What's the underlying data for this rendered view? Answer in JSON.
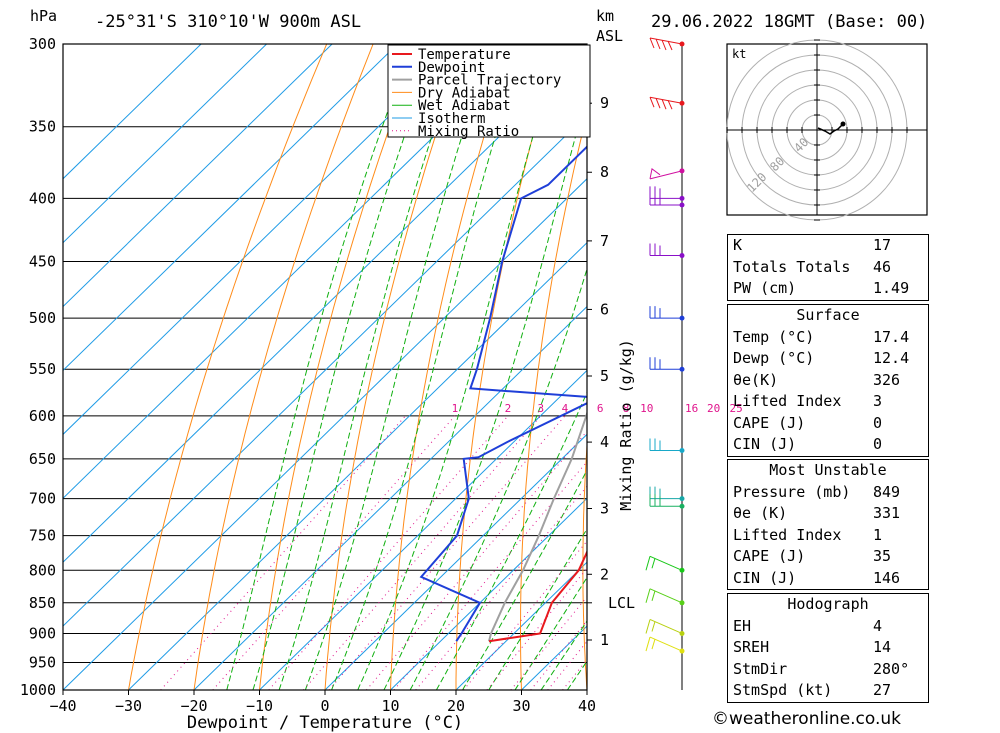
{
  "header": {
    "pressure_unit": "hPa",
    "location": "-25°31'S 310°10'W 900m ASL",
    "height_unit": "km",
    "height_unit_sub": "ASL",
    "datetime": "29.06.2022 18GMT (Base: 00)"
  },
  "credit": "©weatheronline.co.uk",
  "colors": {
    "temperature": "#e8191e",
    "dewpoint": "#1f3fd8",
    "parcel": "#a0a0a0",
    "dry_adiabat": "#ff8c1a",
    "wet_adiabat": "#10b010",
    "isotherm": "#1e9be6",
    "mixing_ratio": "#e0148c"
  },
  "chart_data": {
    "type": "line",
    "title": "-25°31'S 310°10'W 900m ASL",
    "xlabel": "Dewpoint / Temperature (°C)",
    "ylabel": "hPa",
    "xlim": [
      -40,
      40
    ],
    "ylim": [
      1000,
      300
    ],
    "x_ticks": [
      -40,
      -30,
      -20,
      -10,
      0,
      10,
      20,
      30,
      40
    ],
    "pressure_ticks": [
      300,
      350,
      400,
      450,
      500,
      550,
      600,
      650,
      700,
      750,
      800,
      850,
      900,
      950,
      1000
    ],
    "height_ticks": [
      {
        "label": "1",
        "p": 911
      },
      {
        "label": "2",
        "p": 806
      },
      {
        "label": "3",
        "p": 713
      },
      {
        "label": "4",
        "p": 630
      },
      {
        "label": "5",
        "p": 557
      },
      {
        "label": "6",
        "p": 492
      },
      {
        "label": "7",
        "p": 433
      },
      {
        "label": "8",
        "p": 381
      },
      {
        "label": "9",
        "p": 335
      },
      {
        "label": "LCL",
        "p": 850
      }
    ],
    "mixing_ratio_axis_label": "Mixing Ratio (g/kg)",
    "mixing_ratio_labels": [
      "1",
      "2",
      "3",
      "4",
      "6",
      "8",
      "10",
      "16",
      "20",
      "25"
    ],
    "grid": true,
    "legend": {
      "position": "top-right",
      "entries": [
        "Temperature",
        "Dewpoint",
        "Parcel Trajectory",
        "Dry Adiabat",
        "Wet Adiabat",
        "Isotherm",
        "Mixing Ratio"
      ]
    },
    "series": [
      {
        "name": "Temperature",
        "points": [
          [
            913,
            17.4
          ],
          [
            900,
            24
          ],
          [
            850,
            21
          ],
          [
            800,
            20
          ],
          [
            750,
            17
          ],
          [
            700,
            13
          ],
          [
            660,
            10
          ],
          [
            650,
            10
          ],
          [
            620,
            8
          ],
          [
            600,
            6
          ],
          [
            560,
            5
          ],
          [
            550,
            3
          ],
          [
            500,
            -3
          ],
          [
            450,
            -10
          ],
          [
            400,
            -18
          ],
          [
            350,
            -27
          ],
          [
            300,
            -36
          ]
        ]
      },
      {
        "name": "Dewpoint",
        "points": [
          [
            913,
            12.4
          ],
          [
            900,
            12
          ],
          [
            850,
            10
          ],
          [
            810,
            -3
          ],
          [
            750,
            -4
          ],
          [
            700,
            -8
          ],
          [
            650,
            -15
          ],
          [
            648,
            -13
          ],
          [
            630,
            -11
          ],
          [
            580,
            -4
          ],
          [
            570,
            -25
          ],
          [
            550,
            -27
          ],
          [
            500,
            -33
          ],
          [
            450,
            -40
          ],
          [
            400,
            -47
          ],
          [
            390,
            -45
          ],
          [
            360,
            -45
          ],
          [
            350,
            -43
          ],
          [
            320,
            -39
          ],
          [
            300,
            -41
          ]
        ]
      },
      {
        "name": "Parcel Trajectory",
        "points": [
          [
            913,
            17.4
          ],
          [
            900,
            16.5
          ],
          [
            850,
            13.8
          ],
          [
            800,
            11.5
          ],
          [
            750,
            8.5
          ],
          [
            700,
            5
          ],
          [
            650,
            1.5
          ],
          [
            600,
            -3
          ],
          [
            550,
            -8
          ],
          [
            500,
            -13.5
          ],
          [
            450,
            -20
          ],
          [
            400,
            -27.5
          ],
          [
            350,
            -36
          ],
          [
            300,
            -46
          ]
        ]
      }
    ]
  },
  "hodograph": {
    "unit": "kt",
    "ring_labels": [
      "40",
      "80",
      "120"
    ]
  },
  "indices": {
    "rows": [
      {
        "label": "K",
        "value": "17"
      },
      {
        "label": "Totals Totals",
        "value": "46"
      },
      {
        "label": "PW (cm)",
        "value": "1.49"
      }
    ]
  },
  "surface": {
    "title": "Surface",
    "rows": [
      {
        "label": "Temp (°C)",
        "value": "17.4"
      },
      {
        "label": "Dewp (°C)",
        "value": "12.4"
      },
      {
        "label": "θe(K)",
        "value": "326"
      },
      {
        "label": "Lifted Index",
        "value": "3"
      },
      {
        "label": "CAPE (J)",
        "value": "0"
      },
      {
        "label": "CIN (J)",
        "value": "0"
      }
    ]
  },
  "most_unstable": {
    "title": "Most Unstable",
    "rows": [
      {
        "label": "Pressure (mb)",
        "value": "849"
      },
      {
        "label": "θe (K)",
        "value": "331"
      },
      {
        "label": "Lifted Index",
        "value": "1"
      },
      {
        "label": "CAPE (J)",
        "value": "35"
      },
      {
        "label": "CIN (J)",
        "value": "146"
      }
    ]
  },
  "hodo_table": {
    "title": "Hodograph",
    "rows": [
      {
        "label": "EH",
        "value": "4"
      },
      {
        "label": "SREH",
        "value": "14"
      },
      {
        "label": "StmDir",
        "value": "280°"
      },
      {
        "label": "StmSpd (kt)",
        "value": "27"
      }
    ]
  }
}
